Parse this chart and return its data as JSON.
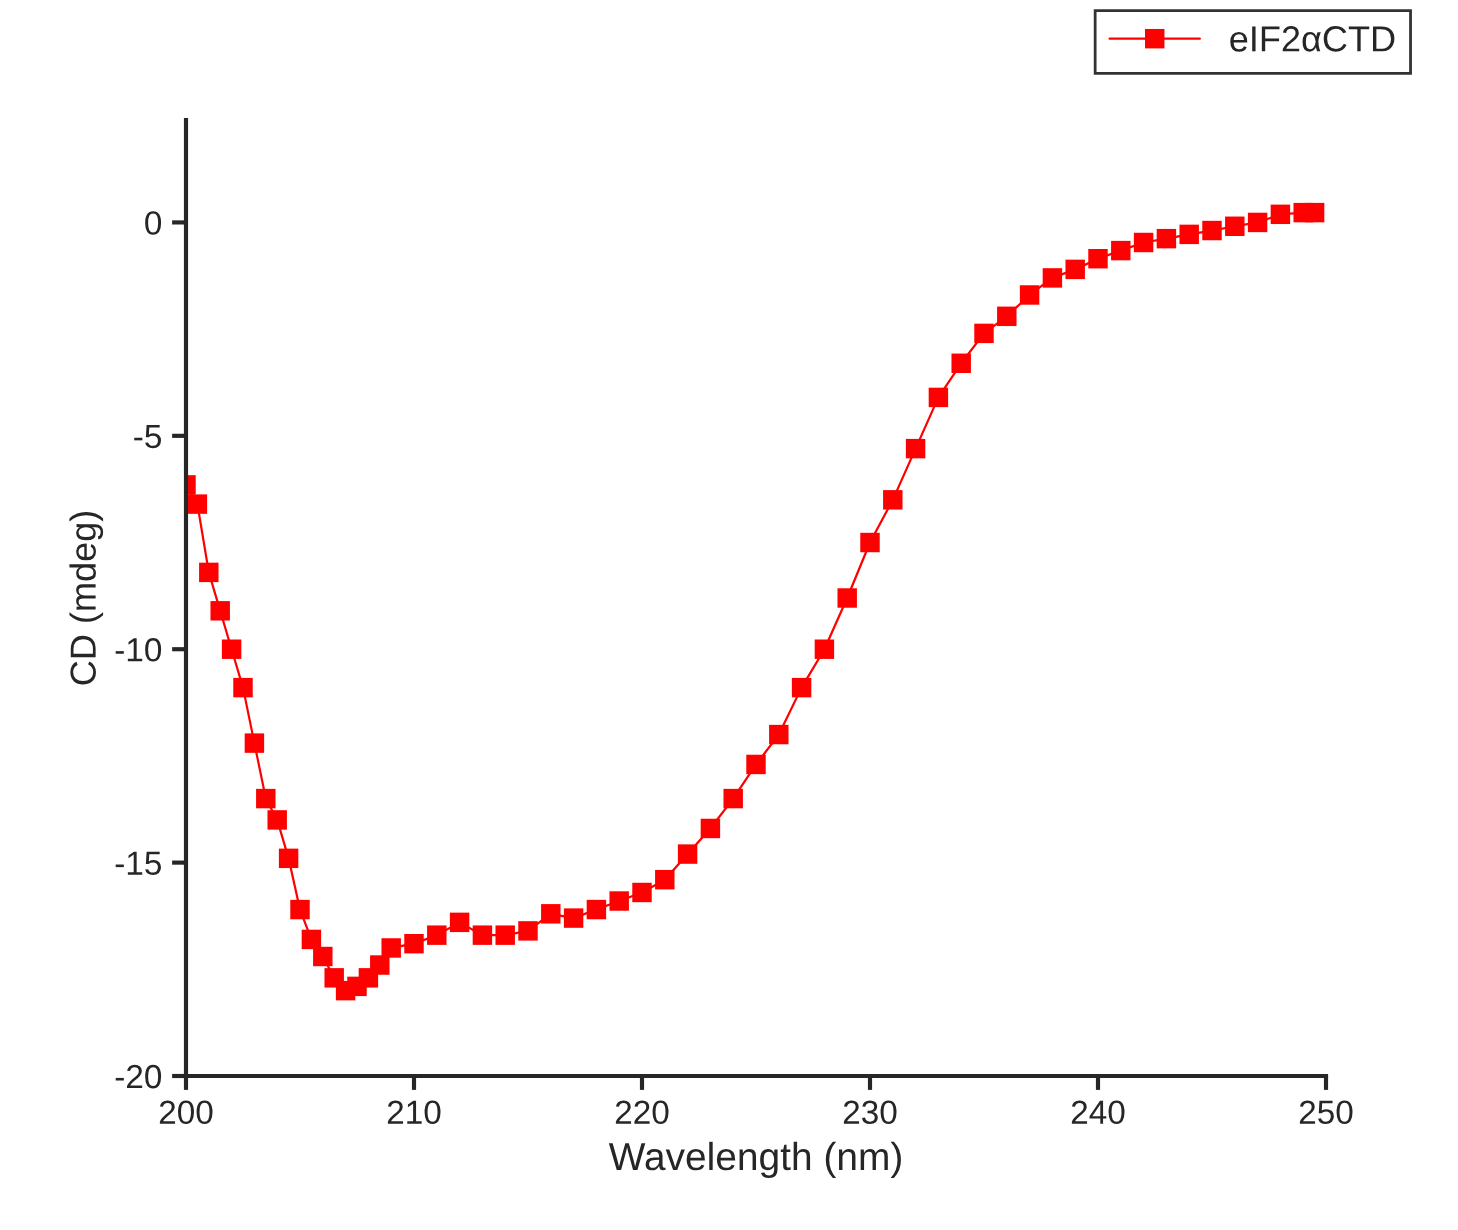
{
  "chart_data": {
    "type": "line",
    "xlabel": "Wavelength (nm)",
    "ylabel": "CD (mdeg)",
    "xlim": [
      200,
      250
    ],
    "xticks": [
      200,
      210,
      220,
      230,
      240,
      250
    ],
    "ylim": [
      -20,
      2.4
    ],
    "yticks": [
      -20,
      -15,
      -10,
      -5,
      0
    ],
    "grid": false,
    "legend": "top right",
    "marker": "square",
    "line_style": "solid",
    "series": [
      {
        "name": "eIF2αCTD",
        "color": "#ff0000",
        "x": [
          200,
          200.5,
          201,
          201.5,
          202,
          202.5,
          203,
          203.5,
          204,
          204.5,
          205,
          205.5,
          206,
          206.5,
          207,
          207.5,
          208,
          208.5,
          209,
          210,
          211,
          212,
          213,
          214,
          215,
          216,
          217,
          218,
          219,
          220,
          221,
          222,
          223,
          224,
          225,
          226,
          227,
          228,
          229,
          230,
          231,
          232,
          233,
          234,
          235,
          236,
          237,
          238,
          239,
          240,
          241,
          242,
          243,
          244,
          245,
          246,
          247,
          248,
          249,
          249.5
        ],
        "values": [
          -6.15,
          -6.6,
          -8.2,
          -9.1,
          -10.0,
          -10.9,
          -12.2,
          -13.5,
          -14.0,
          -14.9,
          -16.1,
          -16.8,
          -17.2,
          -17.7,
          -18.0,
          -17.9,
          -17.7,
          -17.4,
          -17.0,
          -16.9,
          -16.7,
          -16.4,
          -16.7,
          -16.7,
          -16.6,
          -16.2,
          -16.3,
          -16.1,
          -15.9,
          -15.7,
          -15.4,
          -14.8,
          -14.2,
          -13.5,
          -12.7,
          -12.0,
          -10.9,
          -10.0,
          -8.8,
          -7.5,
          -6.5,
          -5.3,
          -4.1,
          -3.3,
          -2.6,
          -2.2,
          -1.7,
          -1.3,
          -1.1,
          -0.85,
          -0.66,
          -0.47,
          -0.38,
          -0.28,
          -0.19,
          -0.09,
          0.0,
          0.19,
          0.23,
          0.23
        ]
      }
    ]
  }
}
